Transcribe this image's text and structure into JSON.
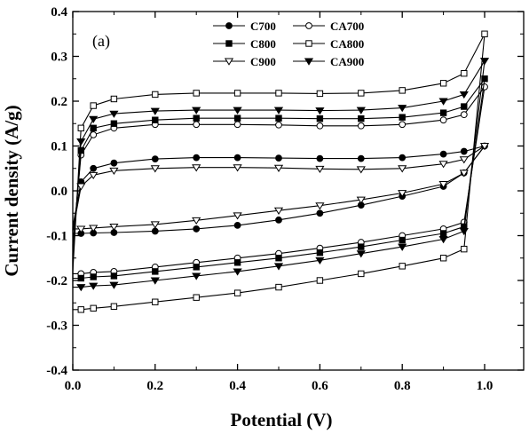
{
  "chart_data": {
    "type": "line",
    "panel_label": "(a)",
    "xlabel": "Potential (V)",
    "ylabel": "Current density (A/g)",
    "xlim": [
      0.0,
      1.0
    ],
    "ylim": [
      -0.4,
      0.4
    ],
    "x_ticks": [
      "0.0",
      "0.2",
      "0.4",
      "0.6",
      "0.8",
      "1.0"
    ],
    "y_ticks": [
      "-0.4",
      "-0.3",
      "-0.2",
      "-0.1",
      "0.0",
      "0.1",
      "0.2",
      "0.3",
      "0.4"
    ],
    "grid": false,
    "legend_position": "top-center",
    "x": [
      0.0,
      0.02,
      0.05,
      0.1,
      0.2,
      0.3,
      0.4,
      0.5,
      0.6,
      0.7,
      0.8,
      0.9,
      0.95,
      1.0
    ],
    "series": [
      {
        "name": "C700",
        "marker": "circle-filled",
        "anodic": [
          -0.08,
          0.02,
          0.05,
          0.062,
          0.071,
          0.074,
          0.074,
          0.073,
          0.072,
          0.072,
          0.074,
          0.082,
          0.088,
          0.1
        ],
        "cathodic": [
          -0.095,
          -0.095,
          -0.094,
          -0.093,
          -0.09,
          -0.085,
          -0.077,
          -0.065,
          -0.05,
          -0.032,
          -0.012,
          0.01,
          0.04,
          0.1
        ]
      },
      {
        "name": "CA700",
        "marker": "circle-open",
        "anodic": [
          -0.12,
          0.08,
          0.125,
          0.14,
          0.148,
          0.148,
          0.148,
          0.147,
          0.145,
          0.145,
          0.148,
          0.158,
          0.17,
          0.232
        ],
        "cathodic": [
          -0.185,
          -0.185,
          -0.182,
          -0.18,
          -0.17,
          -0.16,
          -0.15,
          -0.14,
          -0.128,
          -0.115,
          -0.1,
          -0.085,
          -0.07,
          0.232
        ]
      },
      {
        "name": "C800",
        "marker": "square-filled",
        "anodic": [
          -0.14,
          0.09,
          0.14,
          0.15,
          0.158,
          0.162,
          0.162,
          0.162,
          0.161,
          0.161,
          0.164,
          0.174,
          0.188,
          0.25
        ],
        "cathodic": [
          -0.195,
          -0.195,
          -0.192,
          -0.19,
          -0.18,
          -0.17,
          -0.16,
          -0.15,
          -0.138,
          -0.125,
          -0.11,
          -0.095,
          -0.08,
          0.25
        ]
      },
      {
        "name": "CA800",
        "marker": "square-open",
        "anodic": [
          -0.18,
          0.14,
          0.19,
          0.205,
          0.215,
          0.218,
          0.218,
          0.218,
          0.217,
          0.218,
          0.224,
          0.24,
          0.262,
          0.35
        ],
        "cathodic": [
          -0.265,
          -0.265,
          -0.262,
          -0.258,
          -0.248,
          -0.238,
          -0.228,
          -0.215,
          -0.2,
          -0.185,
          -0.168,
          -0.15,
          -0.13,
          0.35
        ]
      },
      {
        "name": "C900",
        "marker": "triangle-down-open",
        "anodic": [
          -0.09,
          0.01,
          0.035,
          0.045,
          0.05,
          0.052,
          0.052,
          0.051,
          0.049,
          0.048,
          0.05,
          0.06,
          0.07,
          0.1
        ],
        "cathodic": [
          -0.085,
          -0.085,
          -0.083,
          -0.08,
          -0.075,
          -0.066,
          -0.055,
          -0.044,
          -0.033,
          -0.02,
          -0.005,
          0.015,
          0.04,
          0.1
        ]
      },
      {
        "name": "CA900",
        "marker": "triangle-down-filled",
        "anodic": [
          -0.15,
          0.11,
          0.16,
          0.172,
          0.178,
          0.18,
          0.18,
          0.18,
          0.179,
          0.18,
          0.185,
          0.2,
          0.215,
          0.29
        ],
        "cathodic": [
          -0.215,
          -0.215,
          -0.212,
          -0.21,
          -0.2,
          -0.19,
          -0.18,
          -0.168,
          -0.155,
          -0.14,
          -0.125,
          -0.108,
          -0.09,
          0.29
        ]
      }
    ]
  }
}
